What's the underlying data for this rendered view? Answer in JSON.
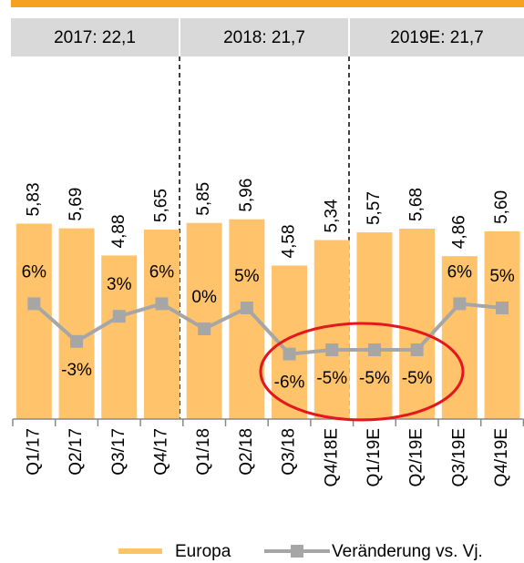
{
  "chart_data": {
    "type": "bar",
    "annotations": [
      "2017: 22,1",
      "2018: 21,7",
      "2019E: 21,7"
    ],
    "categories": [
      "Q1/17",
      "Q2/17",
      "Q3/17",
      "Q4/17",
      "Q1/18",
      "Q2/18",
      "Q3/18",
      "Q4/18E",
      "Q1/19E",
      "Q2/19E",
      "Q3/19E",
      "Q4/19E"
    ],
    "series": [
      {
        "name": "Europa",
        "type": "bar",
        "color": "#ffc46b",
        "values": [
          5.83,
          5.69,
          4.88,
          5.65,
          5.85,
          5.96,
          4.58,
          5.34,
          5.57,
          5.68,
          4.86,
          5.6
        ],
        "value_labels": [
          "5,83",
          "5,69",
          "4,88",
          "5,65",
          "5,85",
          "5,96",
          "4,58",
          "5,34",
          "5,57",
          "5,68",
          "4,86",
          "5,60"
        ]
      },
      {
        "name": "Veränderung vs. Vj.",
        "type": "line",
        "axis": "y2",
        "color": "#a6a6a6",
        "values": [
          6,
          -3,
          3,
          6,
          0,
          5,
          -6,
          -5,
          -5,
          -5,
          6,
          5
        ],
        "value_labels": [
          "6%",
          "-3%",
          "3%",
          "6%",
          "0%",
          "5%",
          "-6%",
          "-5%",
          "-5%",
          "-5%",
          "6%",
          "5%"
        ]
      }
    ],
    "ylim": [
      0,
      12.5
    ],
    "y2lim": [
      -10,
      10
    ]
  }
}
